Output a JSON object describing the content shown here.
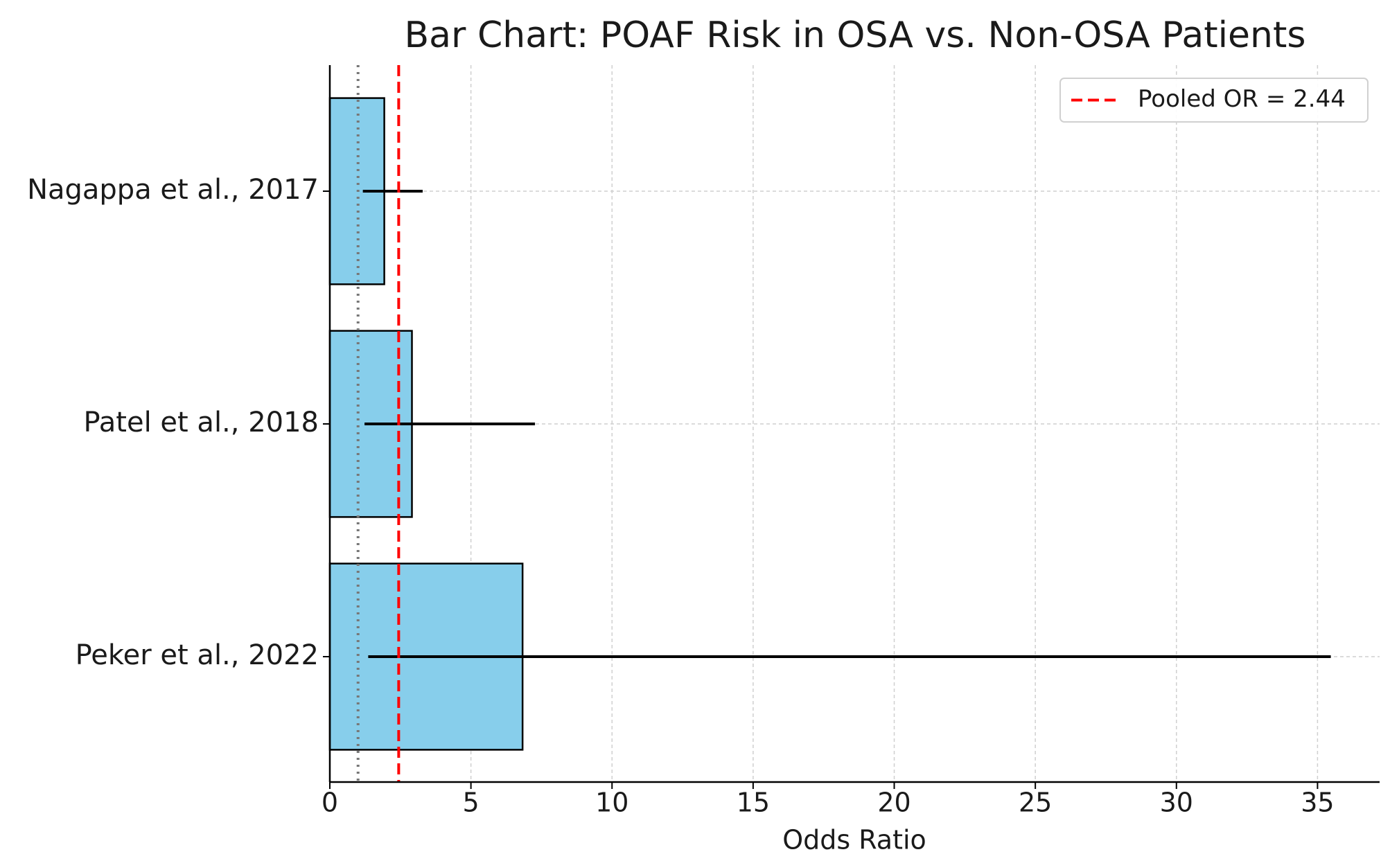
{
  "chart_data": {
    "type": "bar",
    "orientation": "horizontal",
    "title": "Bar Chart: POAF Risk in OSA vs. Non-OSA Patients",
    "x_label": "Odds Ratio",
    "categories": [
      "Nagappa et al., 2017",
      "Patel et al., 2018",
      "Peker et al., 2022"
    ],
    "values": [
      1.93,
      2.91,
      6.83
    ],
    "ci_lower": [
      1.17,
      1.23,
      1.36
    ],
    "ci_upper": [
      3.29,
      7.27,
      35.47
    ],
    "color": "#87ceeb",
    "xlim": [
      0,
      37.2
    ],
    "xticks": [
      0,
      5,
      10,
      15,
      20,
      25,
      30,
      35
    ],
    "grid": true,
    "reference_line": 1,
    "pooled_line": {
      "value": 2.44,
      "label": "Pooled OR = 2.44",
      "color": "#ff0000"
    },
    "legend_position": "upper right"
  }
}
